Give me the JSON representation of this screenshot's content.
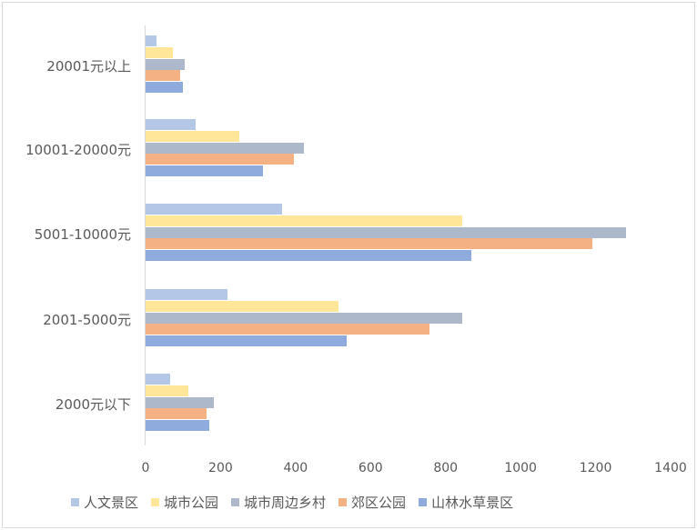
{
  "chart_data": {
    "type": "bar",
    "orientation": "horizontal",
    "title": "",
    "xlabel": "",
    "ylabel": "",
    "xlim": [
      0,
      1400
    ],
    "x_ticks": [
      "0",
      "200",
      "400",
      "600",
      "800",
      "1000",
      "1200",
      "1400"
    ],
    "grid": false,
    "legend_position": "bottom",
    "categories": [
      "20001元以上",
      "10001-20000元",
      "5001-10000元",
      "2001-5000元",
      "2000元以下"
    ],
    "series": [
      {
        "name": "人文景区",
        "color": "#b4c7e7",
        "values": [
          30,
          133,
          364,
          218,
          66
        ]
      },
      {
        "name": "城市公园",
        "color": "#ffe699",
        "values": [
          72,
          250,
          845,
          515,
          114
        ]
      },
      {
        "name": "城市周边乡村",
        "color": "#adb9ca",
        "values": [
          105,
          422,
          1282,
          845,
          182
        ]
      },
      {
        "name": "郊区公园",
        "color": "#f4b183",
        "values": [
          92,
          396,
          1192,
          757,
          163
        ]
      },
      {
        "name": "山林水草景区",
        "color": "#8faadc",
        "values": [
          100,
          313,
          869,
          536,
          170
        ]
      }
    ]
  }
}
